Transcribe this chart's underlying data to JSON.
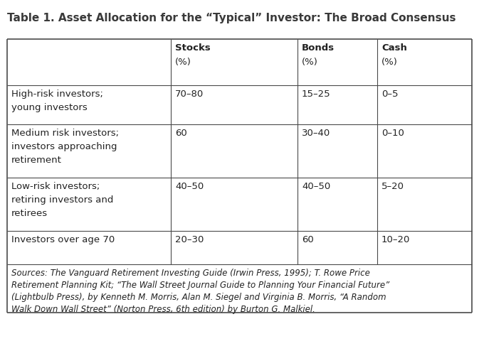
{
  "title": "Table 1. Asset Allocation for the “Typical” Investor: The Broad Consensus",
  "col_headers": [
    [
      "Stocks",
      "(%)"
    ],
    [
      "Bonds",
      "(%)"
    ],
    [
      "Cash",
      "(%)"
    ]
  ],
  "row_labels": [
    [
      "High-risk investors;",
      "young investors"
    ],
    [
      "Medium risk investors;",
      "investors approaching",
      "retirement"
    ],
    [
      "Low-risk investors;",
      "retiring investors and",
      "retirees"
    ],
    [
      "Investors over age 70"
    ]
  ],
  "data": [
    [
      "70–80",
      "15–25",
      "0–5"
    ],
    [
      "60",
      "30–40",
      "0–10"
    ],
    [
      "40–50",
      "40–50",
      "5–20"
    ],
    [
      "20–30",
      "60",
      "10–20"
    ]
  ],
  "footnote": "Sources: The Vanguard Retirement Investing Guide (Irwin Press, 1995); T. Rowe Price\nRetirement Planning Kit; “The Wall Street Journal Guide to Planning Your Financial Future”\n(Lightbulb Press), by Kenneth M. Morris, Alan M. Siegel and Virginia B. Morris, “A Random\nWalk Down Wall Street” (Norton Press, 6th edition) by Burton G. Malkiel.",
  "background_color": "#ffffff",
  "title_color": "#3a3a3a",
  "border_color": "#4a4a4a",
  "title_fontsize": 11.0,
  "header_fontsize": 9.5,
  "body_fontsize": 9.5,
  "footnote_fontsize": 8.5,
  "fig_width": 6.73,
  "fig_height": 4.87,
  "dpi": 100
}
